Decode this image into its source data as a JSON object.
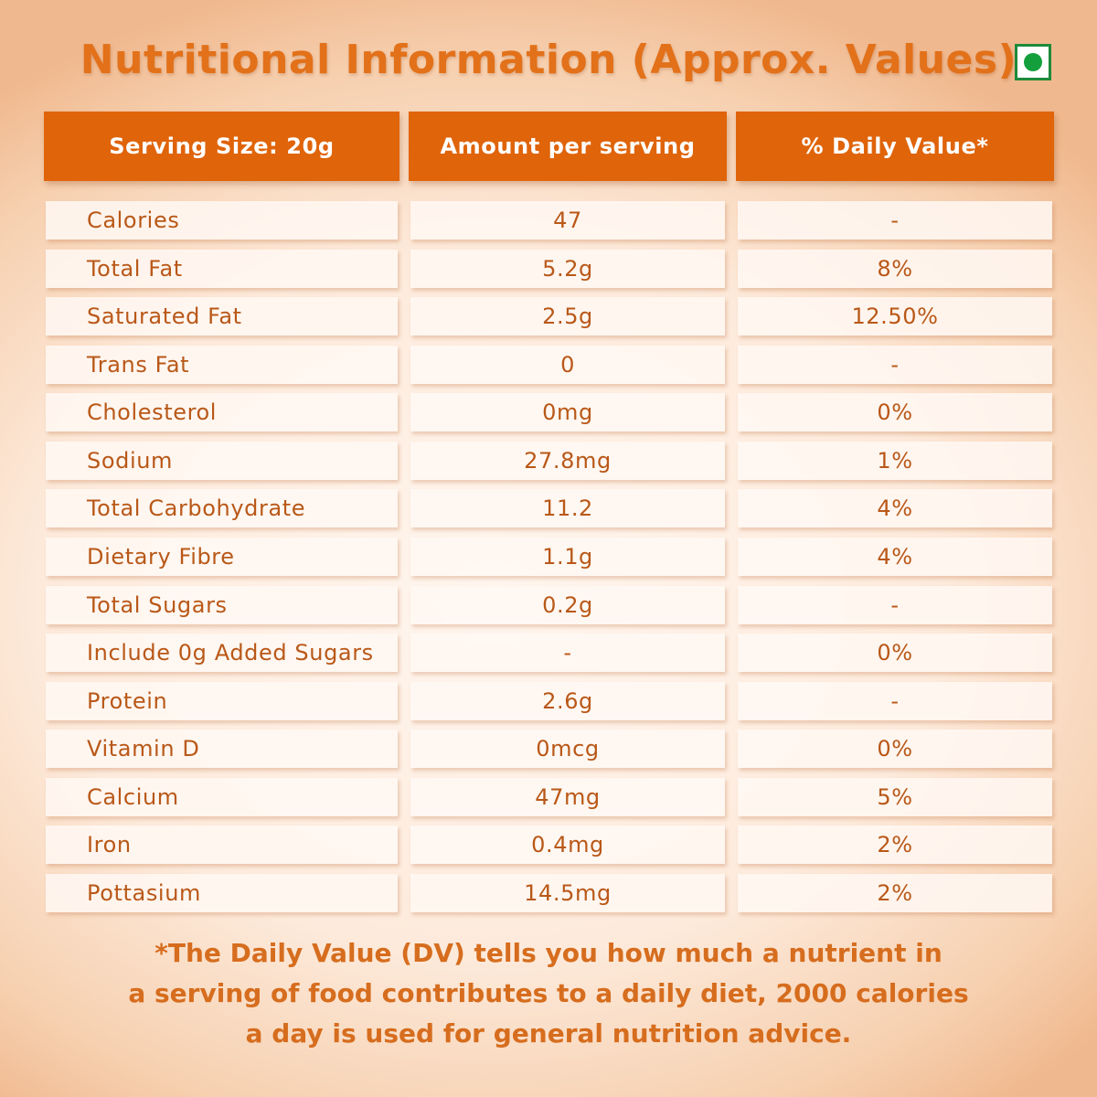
{
  "header": {
    "title": "Nutritional Information (Approx. Values)"
  },
  "table": {
    "columns": [
      "Serving Size: 20g",
      "Amount per serving",
      "% Daily Value*"
    ],
    "rows": [
      [
        "Calories",
        "47",
        "-"
      ],
      [
        "Total Fat",
        "5.2g",
        "8%"
      ],
      [
        "Saturated Fat",
        "2.5g",
        "12.50%"
      ],
      [
        "Trans Fat",
        "0",
        "-"
      ],
      [
        "Cholesterol",
        "0mg",
        "0%"
      ],
      [
        "Sodium",
        "27.8mg",
        "1%"
      ],
      [
        "Total Carbohydrate",
        "11.2",
        "4%"
      ],
      [
        "Dietary Fibre",
        "1.1g",
        "4%"
      ],
      [
        "Total Sugars",
        "0.2g",
        "-"
      ],
      [
        "Include 0g Added Sugars",
        "-",
        "0%"
      ],
      [
        "Protein",
        "2.6g",
        "-"
      ],
      [
        "Vitamin D",
        "0mcg",
        "0%"
      ],
      [
        "Calcium",
        "47mg",
        "5%"
      ],
      [
        "Iron",
        "0.4mg",
        "2%"
      ],
      [
        "Pottasium",
        "14.5mg",
        "2%"
      ]
    ]
  },
  "footnote": {
    "lines": [
      "*The Daily Value (DV) tells you how much a nutrient in",
      "a serving of food contributes to a daily diet, 2000 calories",
      "a day is used for general nutrition advice."
    ]
  }
}
